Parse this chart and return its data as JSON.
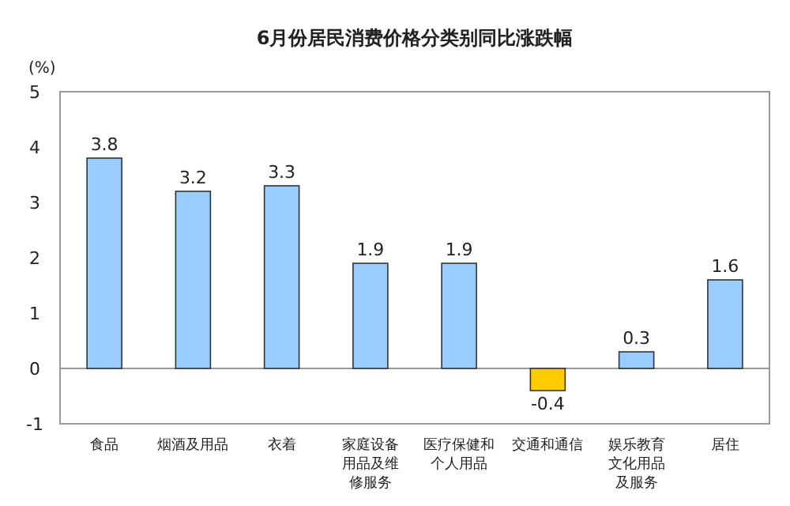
{
  "chart_data": {
    "type": "bar",
    "title": "6月份居民消费价格分类别同比涨跌幅",
    "ylabel": "(%)",
    "categories": [
      "食品",
      "烟酒及用品",
      "衣着",
      "家庭设备用品及维修服务",
      "医疗保健和个人用品",
      "交通和通信",
      "娱乐教育文化用品及服务",
      "居住"
    ],
    "values": [
      3.8,
      3.2,
      3.3,
      1.9,
      1.9,
      -0.4,
      0.3,
      1.6
    ],
    "colors": [
      "#99ccff",
      "#99ccff",
      "#99ccff",
      "#99ccff",
      "#99ccff",
      "#ffcc00",
      "#99ccff",
      "#99ccff"
    ],
    "ylim": [
      -1,
      5
    ],
    "yticks": [
      -1,
      0,
      1,
      2,
      3,
      4,
      5
    ],
    "data_labels": true
  }
}
